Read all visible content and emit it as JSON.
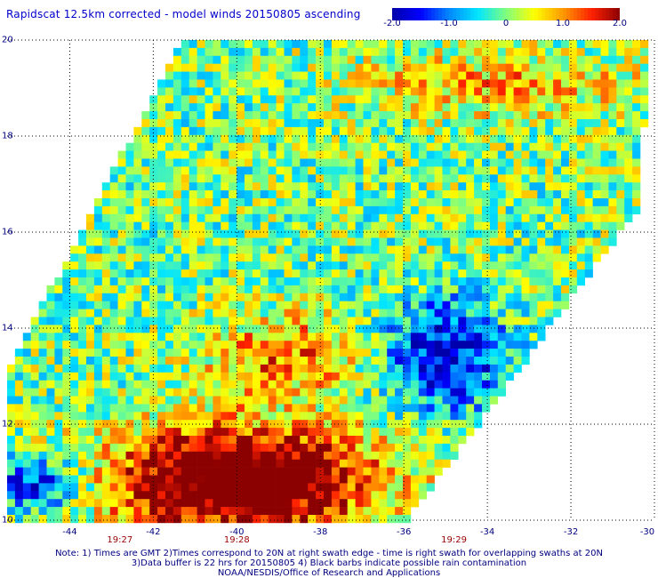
{
  "title": "Rapidscat 12.5km corrected - model winds 20150805 ascending",
  "colorbar": {
    "min": -2.0,
    "max": 2.0,
    "tick_labels": [
      "-2.0",
      "-1.0",
      "0",
      "1.0",
      "2.0"
    ],
    "tick_values": [
      -2.0,
      -1.0,
      0,
      1.0,
      2.0
    ],
    "colors": [
      "#0000aa",
      "#0000ff",
      "#0088ff",
      "#00e5ff",
      "#7fff7f",
      "#ffff00",
      "#ff9900",
      "#ff2200",
      "#8b0000"
    ]
  },
  "map": {
    "lon_range": [
      -45.5,
      -30
    ],
    "lat_range": [
      10,
      20
    ],
    "lat_ticks": [
      {
        "value": 20,
        "label": "20"
      },
      {
        "value": 18,
        "label": "18"
      },
      {
        "value": 16,
        "label": "16"
      },
      {
        "value": 14,
        "label": "14"
      },
      {
        "value": 12,
        "label": "12"
      },
      {
        "value": 10,
        "label": "10"
      }
    ],
    "lon_ticks": [
      {
        "value": -44,
        "label": "-44"
      },
      {
        "value": -42,
        "label": "-42"
      },
      {
        "value": -40,
        "label": "-40"
      },
      {
        "value": -38,
        "label": "-38"
      },
      {
        "value": -36,
        "label": "-36"
      },
      {
        "value": -34,
        "label": "-34"
      },
      {
        "value": -32,
        "label": "-32"
      },
      {
        "value": -30,
        "label": "-30"
      }
    ],
    "time_labels": [
      {
        "lon": -42.8,
        "label": "19:27"
      },
      {
        "lon": -40.0,
        "label": "19:28"
      },
      {
        "lon": -34.8,
        "label": "19:29"
      }
    ],
    "grid_style": "dotted"
  },
  "notes": [
    "Note: 1) Times are GMT 2)Times correspond to 20N at right swath edge - time is right swath for overlapping swaths at 20N",
    "3)Data buffer is 22 hrs for 20150805 4) Black barbs indicate possible rain contamination",
    "NOAA/NESDIS/Office of Research and Applications"
  ]
}
